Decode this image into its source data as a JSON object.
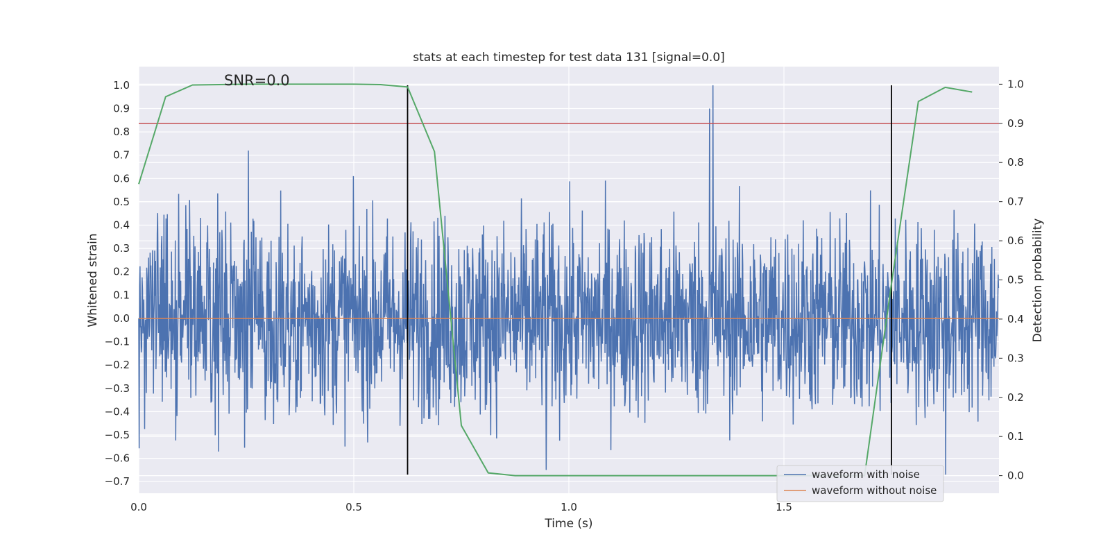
{
  "chart_data": {
    "type": "line",
    "title": "stats at each timestep for test data 131 [signal=0.0]",
    "xlabel": "Time (s)",
    "ylabel_left": "Whitened strain",
    "ylabel_right": "Detection probability",
    "annotation": "SNR=0.0",
    "xlim": [
      0.0,
      2.0
    ],
    "ylim_left": [
      -0.75,
      1.08
    ],
    "ylim_right": [
      -0.045,
      1.045
    ],
    "x_ticks": [
      0.0,
      0.5,
      1.0,
      1.5
    ],
    "x_tick_labels": [
      "0.0",
      "0.5",
      "1.0",
      "1.5"
    ],
    "y_left_ticks": [
      1.0,
      0.9,
      0.8,
      0.7,
      0.6,
      0.5,
      0.4,
      0.3,
      0.2,
      0.1,
      0.0,
      -0.1,
      -0.2,
      -0.3,
      -0.4,
      -0.5,
      -0.6,
      -0.7
    ],
    "y_left_tick_labels": [
      "1.0",
      "0.9",
      "0.8",
      "0.7",
      "0.6",
      "0.5",
      "0.4",
      "0.3",
      "0.2",
      "0.1",
      "0.0",
      "−0.1",
      "−0.2",
      "−0.3",
      "−0.4",
      "−0.5",
      "−0.6",
      "−0.7"
    ],
    "y_right_ticks": [
      1.0,
      0.9,
      0.8,
      0.7,
      0.6,
      0.5,
      0.4,
      0.3,
      0.2,
      0.1,
      0.0
    ],
    "y_right_tick_labels": [
      "1.0",
      "0.9",
      "0.8",
      "0.7",
      "0.6",
      "0.5",
      "0.4",
      "0.3",
      "0.2",
      "0.1",
      "0.0"
    ],
    "grid": true,
    "legend_position": "bottom-right",
    "series": [
      {
        "name": "waveform with noise",
        "axis": "left",
        "color": "#4c72b0",
        "kind": "dense noise, 2048 samples over 2.0 s, spikes roughly between -0.67 and 1.0",
        "notable_peaks": [
          {
            "x": 0.255,
            "y": 0.72
          },
          {
            "x": 1.327,
            "y": 0.9
          },
          {
            "x": 1.335,
            "y": 1.0
          },
          {
            "x": 0.947,
            "y": -0.65
          },
          {
            "x": 1.876,
            "y": -0.67
          }
        ]
      },
      {
        "name": "waveform without noise",
        "axis": "left",
        "color": "#dd8452",
        "x": [
          0.0,
          2.0
        ],
        "y": [
          0.0,
          0.0
        ]
      },
      {
        "name": "",
        "axis": "right",
        "color": "#55a868",
        "x": [
          0.0,
          0.0625,
          0.125,
          0.1875,
          0.25,
          0.3125,
          0.375,
          0.4375,
          0.5,
          0.5625,
          0.625,
          0.6875,
          0.75,
          0.8125,
          0.875,
          0.9375,
          1.0,
          1.0625,
          1.125,
          1.1875,
          1.25,
          1.3125,
          1.375,
          1.4375,
          1.5,
          1.5625,
          1.625,
          1.6875,
          1.75,
          1.8125,
          1.875,
          1.9375
        ],
        "y": [
          0.745,
          0.968,
          0.998,
          0.999,
          1.0,
          1.0,
          1.0,
          1.0,
          1.0,
          0.999,
          0.993,
          0.828,
          0.128,
          0.007,
          0.0,
          0.0,
          0.0,
          0.0,
          0.0,
          0.0,
          0.0,
          0.0,
          0.0,
          0.0,
          0.0,
          0.0,
          0.0,
          0.0,
          0.49,
          0.956,
          0.992,
          0.98
        ]
      }
    ],
    "threshold": {
      "axis": "right",
      "value": 0.9,
      "color": "#c44e52"
    },
    "vertical_markers": {
      "x": [
        0.625,
        1.75
      ],
      "ymin": -0.67,
      "ymax": 1.0,
      "color": "#000000"
    }
  }
}
